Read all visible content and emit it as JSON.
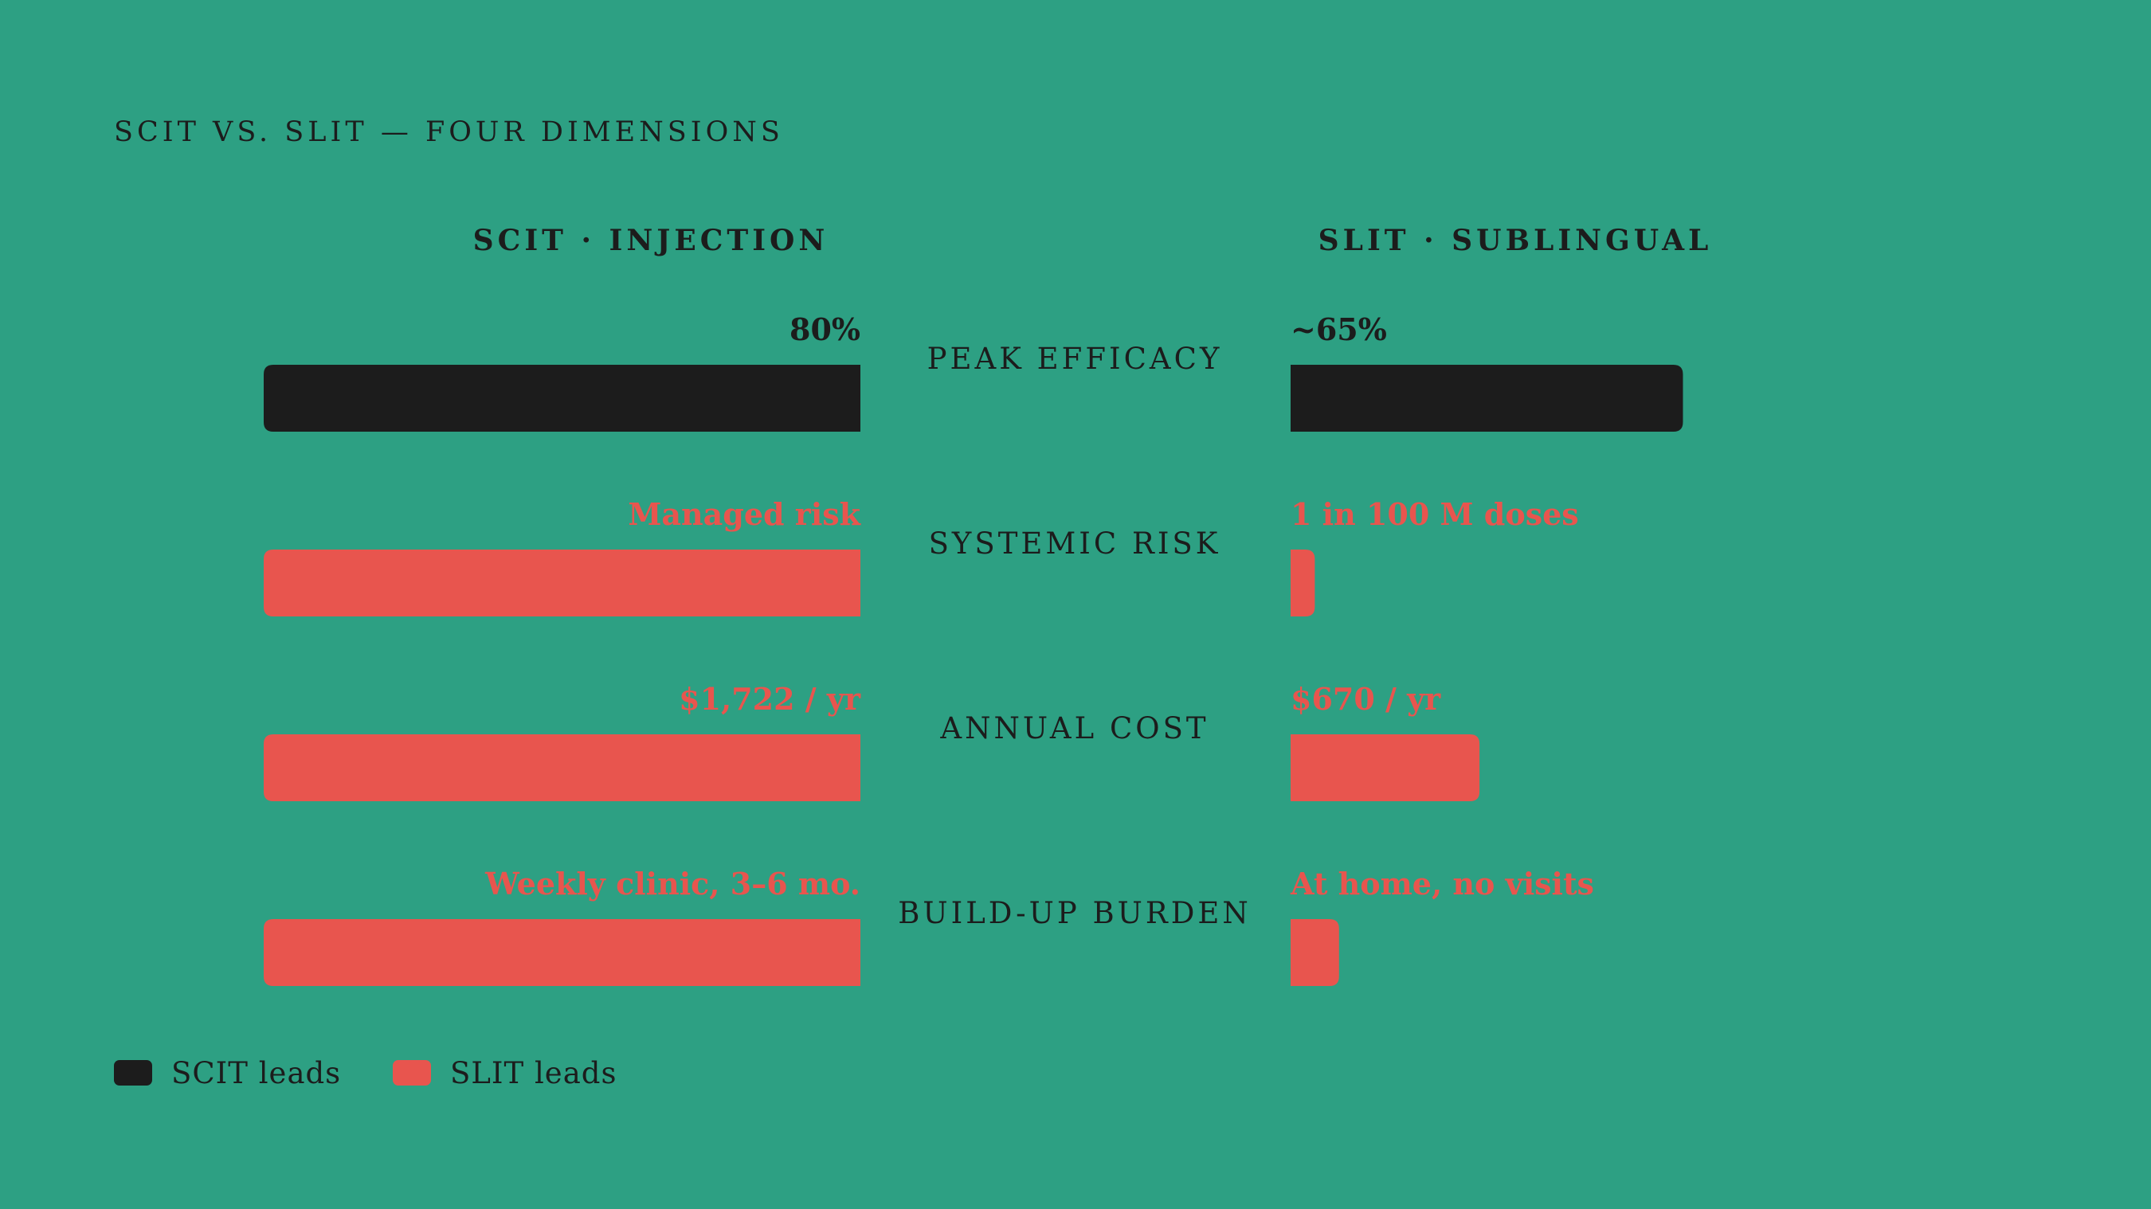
{
  "chart_data": {
    "type": "bar",
    "title": "SCIT VS. SLIT — FOUR DIMENSIONS",
    "left_header": "SCIT · INJECTION",
    "right_header": "SLIT · SUBLINGUAL",
    "categories": [
      "PEAK EFFICACY",
      "SYSTEMIC RISK",
      "ANNUAL COST",
      "BUILD-UP BURDEN"
    ],
    "series": [
      {
        "name": "SCIT",
        "values": [
          1.0,
          1.0,
          1.0,
          1.0
        ],
        "labels": [
          "80%",
          "Managed risk",
          "$1,722 / yr",
          "Weekly clinic, 3–6 mo."
        ]
      },
      {
        "name": "SLIT",
        "values": [
          0.81,
          0.05,
          0.39,
          0.1
        ],
        "labels": [
          "~65%",
          "1 in 100 M doses",
          "$670 / yr",
          "At home, no visits"
        ]
      }
    ],
    "leader": [
      "SCIT",
      "SLIT",
      "SLIT",
      "SLIT"
    ],
    "legend": [
      {
        "key": "SCIT",
        "label": "SCIT leads"
      },
      {
        "key": "SLIT",
        "label": "SLIT leads"
      }
    ],
    "colors": {
      "background": "#2da083",
      "scit_leads": "#1c1c1c",
      "slit_leads": "#e8554e",
      "text": "#1c1c1c"
    }
  }
}
